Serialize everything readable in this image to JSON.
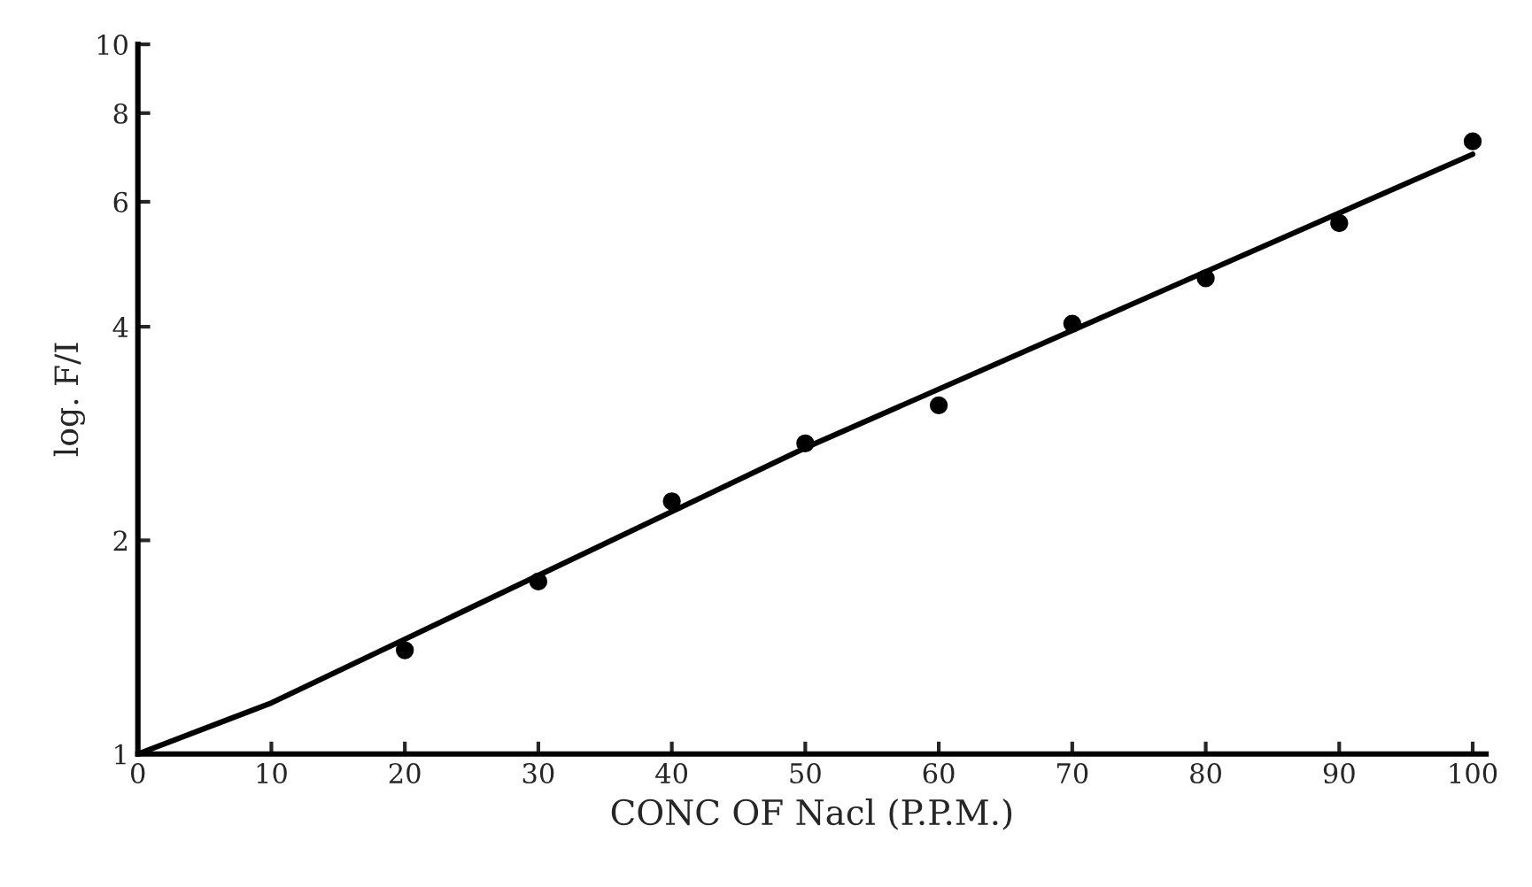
{
  "chart_data": {
    "type": "scatter",
    "xlabel": "CONC OF Nacl (P.P.M.)",
    "ylabel": "log. F/I",
    "log": "y",
    "xlim": [
      0,
      101
    ],
    "xticks": [
      0,
      10,
      20,
      30,
      40,
      50,
      60,
      70,
      80,
      90,
      100
    ],
    "ylim": [
      1,
      10
    ],
    "yticks": [
      1,
      2,
      4,
      6,
      8,
      10
    ],
    "grid": false,
    "marker": "circle",
    "series": [
      {
        "color": "#000000",
        "x": [
          20,
          30,
          40,
          50,
          60,
          70,
          80,
          90,
          100
        ],
        "values": [
          1.4,
          1.75,
          2.27,
          2.74,
          3.1,
          4.04,
          4.68,
          5.6,
          7.3
        ]
      },
      {
        "type": "line",
        "color": "#000000",
        "x": [
          0,
          10,
          50,
          100
        ],
        "values": [
          1,
          1.18,
          2.7,
          7.0
        ],
        "marker": "none",
        "line_style": "solid"
      }
    ]
  }
}
